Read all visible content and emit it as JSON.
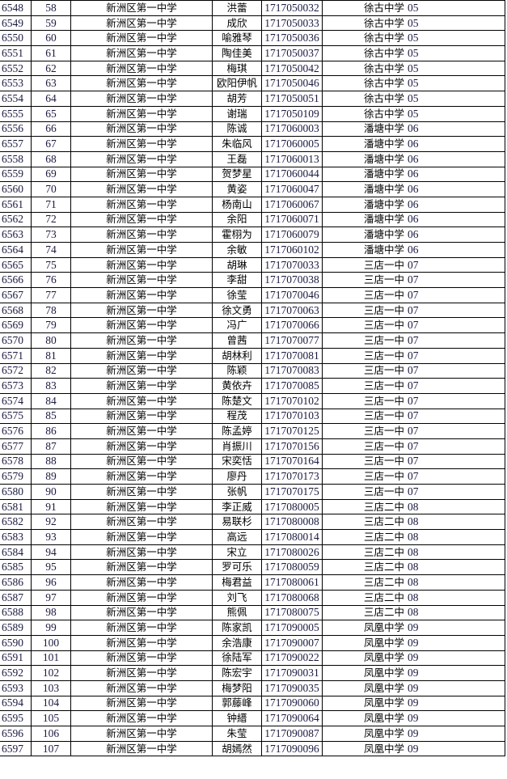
{
  "rows": [
    [
      "6548",
      "58",
      "新洲区第一中学",
      "洪蕾",
      "1717050032",
      "徐古中学",
      "05"
    ],
    [
      "6549",
      "59",
      "新洲区第一中学",
      "成欣",
      "1717050033",
      "徐古中学",
      "05"
    ],
    [
      "6550",
      "60",
      "新洲区第一中学",
      "喻雅琴",
      "1717050036",
      "徐古中学",
      "05"
    ],
    [
      "6551",
      "61",
      "新洲区第一中学",
      "陶佳美",
      "1717050037",
      "徐古中学",
      "05"
    ],
    [
      "6552",
      "62",
      "新洲区第一中学",
      "梅琪",
      "1717050042",
      "徐古中学",
      "05"
    ],
    [
      "6553",
      "63",
      "新洲区第一中学",
      "欧阳伊帆",
      "1717050046",
      "徐古中学",
      "05"
    ],
    [
      "6554",
      "64",
      "新洲区第一中学",
      "胡芳",
      "1717050051",
      "徐古中学",
      "05"
    ],
    [
      "6555",
      "65",
      "新洲区第一中学",
      "谢瑞",
      "1717050109",
      "徐古中学",
      "05"
    ],
    [
      "6556",
      "66",
      "新洲区第一中学",
      "陈诚",
      "1717060003",
      "潘塘中学",
      "06"
    ],
    [
      "6557",
      "67",
      "新洲区第一中学",
      "朱临风",
      "1717060005",
      "潘塘中学",
      "06"
    ],
    [
      "6558",
      "68",
      "新洲区第一中学",
      "王磊",
      "1717060013",
      "潘塘中学",
      "06"
    ],
    [
      "6559",
      "69",
      "新洲区第一中学",
      "贺梦星",
      "1717060044",
      "潘塘中学",
      "06"
    ],
    [
      "6560",
      "70",
      "新洲区第一中学",
      "黄姿",
      "1717060047",
      "潘塘中学",
      "06"
    ],
    [
      "6561",
      "71",
      "新洲区第一中学",
      "杨南山",
      "1717060067",
      "潘塘中学",
      "06"
    ],
    [
      "6562",
      "72",
      "新洲区第一中学",
      "余阳",
      "1717060071",
      "潘塘中学",
      "06"
    ],
    [
      "6563",
      "73",
      "新洲区第一中学",
      "霍栩为",
      "1717060079",
      "潘塘中学",
      "06"
    ],
    [
      "6564",
      "74",
      "新洲区第一中学",
      "余敏",
      "1717060102",
      "潘塘中学",
      "06"
    ],
    [
      "6565",
      "75",
      "新洲区第一中学",
      "胡琳",
      "1717070033",
      "三店一中",
      "07"
    ],
    [
      "6566",
      "76",
      "新洲区第一中学",
      "李甜",
      "1717070038",
      "三店一中",
      "07"
    ],
    [
      "6567",
      "77",
      "新洲区第一中学",
      "徐莹",
      "1717070046",
      "三店一中",
      "07"
    ],
    [
      "6568",
      "78",
      "新洲区第一中学",
      "徐文勇",
      "1717070063",
      "三店一中",
      "07"
    ],
    [
      "6569",
      "79",
      "新洲区第一中学",
      "冯广",
      "1717070066",
      "三店一中",
      "07"
    ],
    [
      "6570",
      "80",
      "新洲区第一中学",
      "曾茜",
      "1717070077",
      "三店一中",
      "07"
    ],
    [
      "6571",
      "81",
      "新洲区第一中学",
      "胡林利",
      "1717070081",
      "三店一中",
      "07"
    ],
    [
      "6572",
      "82",
      "新洲区第一中学",
      "陈颖",
      "1717070083",
      "三店一中",
      "07"
    ],
    [
      "6573",
      "83",
      "新洲区第一中学",
      "黄依卉",
      "1717070085",
      "三店一中",
      "07"
    ],
    [
      "6574",
      "84",
      "新洲区第一中学",
      "陈楚文",
      "1717070102",
      "三店一中",
      "07"
    ],
    [
      "6575",
      "85",
      "新洲区第一中学",
      "程茂",
      "1717070103",
      "三店一中",
      "07"
    ],
    [
      "6576",
      "86",
      "新洲区第一中学",
      "陈孟婷",
      "1717070125",
      "三店一中",
      "07"
    ],
    [
      "6577",
      "87",
      "新洲区第一中学",
      "肖振川",
      "1717070156",
      "三店一中",
      "07"
    ],
    [
      "6578",
      "88",
      "新洲区第一中学",
      "宋奕恬",
      "1717070164",
      "三店一中",
      "07"
    ],
    [
      "6579",
      "89",
      "新洲区第一中学",
      "廖丹",
      "1717070173",
      "三店一中",
      "07"
    ],
    [
      "6580",
      "90",
      "新洲区第一中学",
      "张帆",
      "1717070175",
      "三店一中",
      "07"
    ],
    [
      "6581",
      "91",
      "新洲区第一中学",
      "李正威",
      "1717080005",
      "三店二中",
      "08"
    ],
    [
      "6582",
      "92",
      "新洲区第一中学",
      "易联杉",
      "1717080008",
      "三店二中",
      "08"
    ],
    [
      "6583",
      "93",
      "新洲区第一中学",
      "高远",
      "1717080014",
      "三店二中",
      "08"
    ],
    [
      "6584",
      "94",
      "新洲区第一中学",
      "宋立",
      "1717080026",
      "三店二中",
      "08"
    ],
    [
      "6585",
      "95",
      "新洲区第一中学",
      "罗可乐",
      "1717080059",
      "三店二中",
      "08"
    ],
    [
      "6586",
      "96",
      "新洲区第一中学",
      "梅君益",
      "1717080061",
      "三店二中",
      "08"
    ],
    [
      "6587",
      "97",
      "新洲区第一中学",
      "刘飞",
      "1717080068",
      "三店二中",
      "08"
    ],
    [
      "6588",
      "98",
      "新洲区第一中学",
      "熊佩",
      "1717080075",
      "三店二中",
      "08"
    ],
    [
      "6589",
      "99",
      "新洲区第一中学",
      "陈家凯",
      "1717090005",
      "凤凰中学",
      "09"
    ],
    [
      "6590",
      "100",
      "新洲区第一中学",
      "余浩康",
      "1717090007",
      "凤凰中学",
      "09"
    ],
    [
      "6591",
      "101",
      "新洲区第一中学",
      "徐陆军",
      "1717090022",
      "凤凰中学",
      "09"
    ],
    [
      "6592",
      "102",
      "新洲区第一中学",
      "陈宏宇",
      "1717090031",
      "凤凰中学",
      "09"
    ],
    [
      "6593",
      "103",
      "新洲区第一中学",
      "梅梦阳",
      "1717090035",
      "凤凰中学",
      "09"
    ],
    [
      "6594",
      "104",
      "新洲区第一中学",
      "郭藤峰",
      "1717090060",
      "凤凰中学",
      "09"
    ],
    [
      "6595",
      "105",
      "新洲区第一中学",
      "钟縉",
      "1717090064",
      "凤凰中学",
      "09"
    ],
    [
      "6596",
      "106",
      "新洲区第一中学",
      "朱莹",
      "1717090087",
      "凤凰中学",
      "09"
    ],
    [
      "6597",
      "107",
      "新洲区第一中学",
      "胡嫣然",
      "1717090096",
      "凤凰中学",
      "09"
    ]
  ]
}
